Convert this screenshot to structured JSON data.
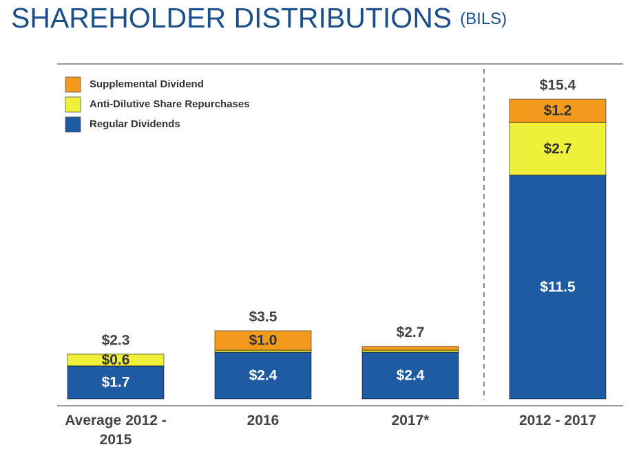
{
  "chart_data": {
    "type": "stacked_bar",
    "title": "SHAREHOLDER DISTRIBUTIONS",
    "unit": "(BILS)",
    "categories": [
      "Average 2012 - 2015",
      "2016",
      "2017*",
      "2012 - 2017"
    ],
    "series": [
      {
        "name": "Regular Dividends",
        "color": "#1f5ba3",
        "values": [
          1.7,
          2.4,
          2.4,
          11.5
        ],
        "value_labels": [
          "$1.7",
          "$2.4",
          "$2.4",
          "$11.5"
        ]
      },
      {
        "name": "Anti-Dilutive Share Repurchases",
        "color": "#eef03a",
        "values": [
          0.6,
          0.1,
          0.1,
          2.7
        ],
        "value_labels": [
          "$0.6",
          null,
          null,
          "$2.7"
        ]
      },
      {
        "name": "Supplemental Dividend",
        "color": "#f39a1c",
        "values": [
          0,
          1.0,
          0.2,
          1.2
        ],
        "value_labels": [
          null,
          "$1.0",
          null,
          "$1.2"
        ]
      }
    ],
    "totals": [
      2.3,
      3.5,
      2.7,
      15.4
    ],
    "total_labels": [
      "$2.3",
      "$3.5",
      "$2.7",
      "$15.4"
    ],
    "legend": "top-left"
  }
}
